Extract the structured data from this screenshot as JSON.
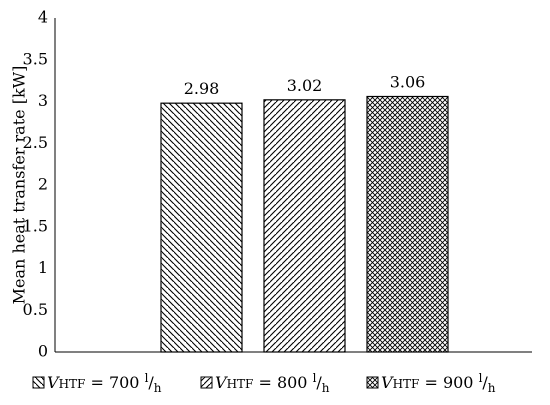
{
  "chart_data": {
    "type": "bar",
    "title": "",
    "xlabel": "",
    "ylabel": "Mean heat transfer rate [kW]",
    "ylim": [
      0,
      4
    ],
    "yticks": [
      "0",
      "0.5",
      "1",
      "1.5",
      "2",
      "2.5",
      "3",
      "3.5",
      "4"
    ],
    "grid": false,
    "legend_position": "bottom",
    "categories": [
      "",
      "",
      ""
    ],
    "values": [
      2.98,
      3.02,
      3.06
    ],
    "data_labels": [
      "2.98",
      "3.02",
      "3.06"
    ],
    "series": [
      {
        "name_symbol": "V",
        "name_subscript": "HTF",
        "name_eq": " = 700 ",
        "name_unit_num": "l",
        "name_unit_den": "h",
        "value": 2.98,
        "pattern": "diagonal-down"
      },
      {
        "name_symbol": "V",
        "name_subscript": "HTF",
        "name_eq": " = 800 ",
        "name_unit_num": "l",
        "name_unit_den": "h",
        "value": 3.02,
        "pattern": "diagonal-up"
      },
      {
        "name_symbol": "V",
        "name_subscript": "HTF",
        "name_eq": " = 900 ",
        "name_unit_num": "l",
        "name_unit_den": "h",
        "value": 3.06,
        "pattern": "crosshatch"
      }
    ],
    "colors": {
      "bar_stroke": "#000000",
      "hatch": "#000000",
      "background": "#ffffff"
    }
  }
}
